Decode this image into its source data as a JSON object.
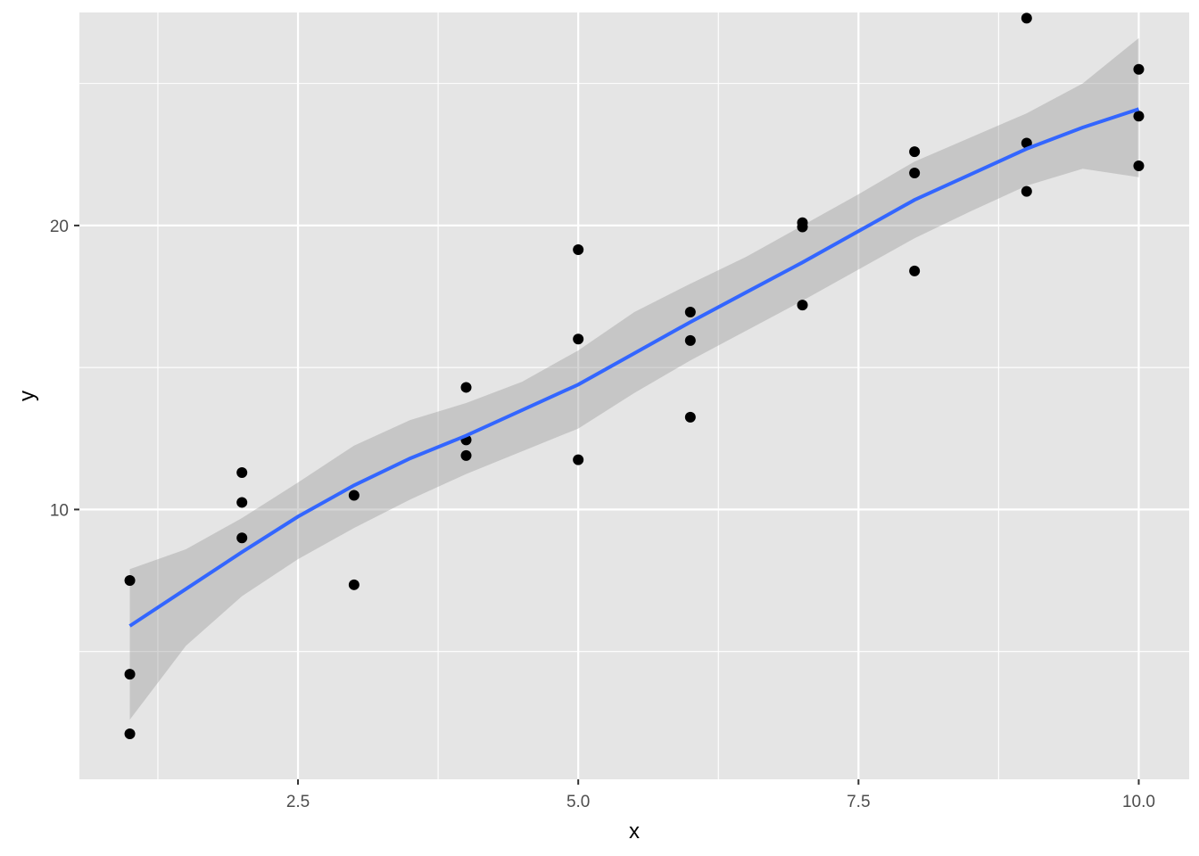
{
  "chart_data": {
    "type": "scatter",
    "title": "",
    "xlabel": "x",
    "ylabel": "y",
    "xlim": [
      0.55,
      10.45
    ],
    "ylim": [
      0.5,
      27.5
    ],
    "x_ticks": [
      2.5,
      5.0,
      7.5,
      10.0
    ],
    "x_tick_labels": [
      "2.5",
      "5.0",
      "7.5",
      "10.0"
    ],
    "y_ticks": [
      10,
      20
    ],
    "y_tick_labels": [
      "10",
      "20"
    ],
    "grid": true,
    "legend": "none",
    "colors": {
      "panel_background": "#e5e5e5",
      "grid": "#ffffff",
      "points": "#000000",
      "smooth_line": "#3366ff",
      "confidence_band": "#999999"
    },
    "points": [
      [
        1,
        7.5
      ],
      [
        1,
        4.2
      ],
      [
        1,
        2.1
      ],
      [
        2,
        11.3
      ],
      [
        2,
        10.25
      ],
      [
        2,
        9.0
      ],
      [
        3,
        10.5
      ],
      [
        3,
        7.35
      ],
      [
        4,
        14.3
      ],
      [
        4,
        12.45
      ],
      [
        4,
        11.9
      ],
      [
        5,
        19.15
      ],
      [
        5,
        16.0
      ],
      [
        5,
        11.75
      ],
      [
        6,
        16.95
      ],
      [
        6,
        15.95
      ],
      [
        6,
        13.25
      ],
      [
        7,
        20.1
      ],
      [
        7,
        19.95
      ],
      [
        7,
        17.2
      ],
      [
        8,
        22.6
      ],
      [
        8,
        21.85
      ],
      [
        8,
        18.4
      ],
      [
        9,
        27.3
      ],
      [
        9,
        22.9
      ],
      [
        9,
        21.2
      ],
      [
        10,
        25.5
      ],
      [
        10,
        23.85
      ],
      [
        10,
        22.1
      ]
    ],
    "smooth": {
      "method": "loess",
      "x": [
        1,
        1.5,
        2,
        2.5,
        3,
        3.5,
        4,
        4.5,
        5,
        5.5,
        6,
        6.5,
        7,
        7.5,
        8,
        8.5,
        9,
        9.5,
        10
      ],
      "y": [
        5.9,
        7.2,
        8.5,
        9.75,
        10.85,
        11.8,
        12.6,
        13.5,
        14.4,
        15.5,
        16.6,
        17.65,
        18.7,
        19.8,
        20.9,
        21.8,
        22.7,
        23.45,
        24.1
      ],
      "lower": [
        2.6,
        5.2,
        6.95,
        8.25,
        9.35,
        10.35,
        11.25,
        12.05,
        12.85,
        14.1,
        15.25,
        16.3,
        17.35,
        18.45,
        19.55,
        20.5,
        21.4,
        22.0,
        21.7
      ],
      "upper": [
        7.9,
        8.6,
        9.7,
        10.95,
        12.25,
        13.15,
        13.75,
        14.5,
        15.6,
        16.95,
        17.95,
        18.9,
        20.0,
        21.1,
        22.25,
        23.1,
        23.95,
        25.0,
        26.6
      ]
    }
  }
}
